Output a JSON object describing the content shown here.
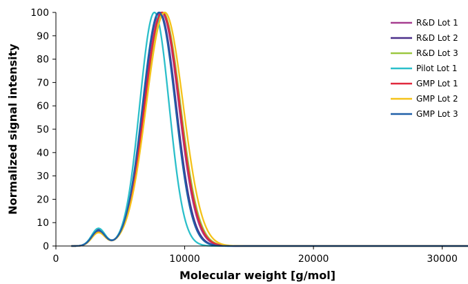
{
  "chart_data": {
    "type": "line",
    "title": "",
    "xlabel": "Molecular weight [g/mol]",
    "ylabel": "Normalized signal intensity",
    "xlim": [
      0,
      32000
    ],
    "ylim": [
      0,
      100
    ],
    "x_ticks": [
      0,
      10000,
      20000,
      30000
    ],
    "y_ticks": [
      0,
      10,
      20,
      30,
      40,
      50,
      60,
      70,
      80,
      90,
      100
    ],
    "grid": false,
    "legend_position": "top-right",
    "curve_shape": "two gaussian peaks: minor peak near 3300 g/mol, main peak near 8000 g/mol, flat to 32000",
    "series": [
      {
        "name": "R&D Lot 1",
        "color": "#a63d8f",
        "minor_peak_x": 3300,
        "minor_peak_y": 6.8,
        "peak_x": 8200,
        "peak_y": 100
      },
      {
        "name": "R&D Lot 2",
        "color": "#4a2f8a",
        "minor_peak_x": 3300,
        "minor_peak_y": 7.0,
        "peak_x": 8050,
        "peak_y": 100
      },
      {
        "name": "R&D Lot 3",
        "color": "#9cc740",
        "minor_peak_x": 3300,
        "minor_peak_y": 5.8,
        "peak_x": 8300,
        "peak_y": 100
      },
      {
        "name": "Pilot Lot 1",
        "color": "#2bbfca",
        "minor_peak_x": 3300,
        "minor_peak_y": 7.5,
        "peak_x": 7650,
        "peak_y": 100
      },
      {
        "name": "GMP Lot 1",
        "color": "#e0283c",
        "minor_peak_x": 3300,
        "minor_peak_y": 5.8,
        "peak_x": 8250,
        "peak_y": 100
      },
      {
        "name": "GMP Lot 2",
        "color": "#f5c218",
        "minor_peak_x": 3300,
        "minor_peak_y": 5.6,
        "peak_x": 8450,
        "peak_y": 100
      },
      {
        "name": "GMP Lot 3",
        "color": "#1f5fa8",
        "minor_peak_x": 3300,
        "minor_peak_y": 6.5,
        "peak_x": 8000,
        "peak_y": 100
      }
    ]
  }
}
